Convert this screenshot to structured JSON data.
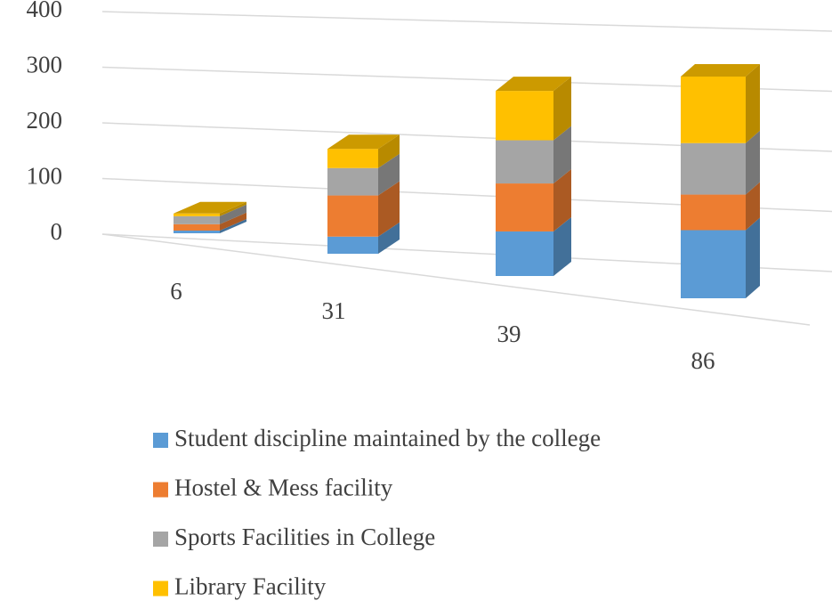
{
  "chart_data": {
    "type": "bar3d_stacked",
    "categories": [
      "6",
      "31",
      "39",
      "86"
    ],
    "series": [
      {
        "name": "Student discipline maintained by the college",
        "color": "#5b9bd5",
        "values": [
          5,
          25,
          65,
          90
        ]
      },
      {
        "name": "Hostel & Mess facility",
        "color": "#ed7d31",
        "values": [
          12,
          60,
          70,
          47
        ]
      },
      {
        "name": "Sports Facilities in College",
        "color": "#a5a5a5",
        "values": [
          15,
          40,
          63,
          68
        ]
      },
      {
        "name": "Library Facility",
        "color": "#ffc000",
        "values": [
          5,
          28,
          72,
          88
        ]
      }
    ],
    "ylim": [
      0,
      400
    ],
    "yticks": [
      0,
      100,
      200,
      300,
      400
    ],
    "grid": true,
    "legend": "bottom"
  }
}
